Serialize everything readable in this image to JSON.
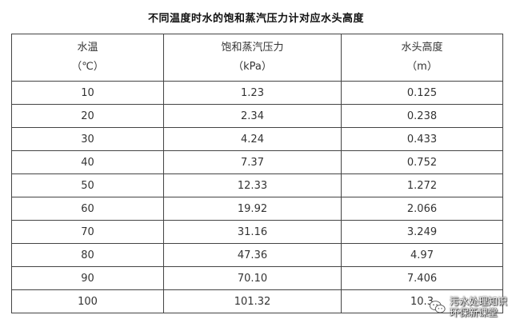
{
  "title": "不同温度时水的饱和蒸汽压力计对应水头高度",
  "table": {
    "headers": [
      {
        "line1": "水温",
        "line2": "（℃）"
      },
      {
        "line1": "饱和蒸汽压力",
        "line2": "（kPa）"
      },
      {
        "line1": "水头高度",
        "line2": "（m）"
      }
    ],
    "rows": [
      [
        "10",
        "1.23",
        "0.125"
      ],
      [
        "20",
        "2.34",
        "0.238"
      ],
      [
        "30",
        "4.24",
        "0.433"
      ],
      [
        "40",
        "7.37",
        "0.752"
      ],
      [
        "50",
        "12.33",
        "1.272"
      ],
      [
        "60",
        "19.92",
        "2.066"
      ],
      [
        "70",
        "31.16",
        "3.249"
      ],
      [
        "80",
        "47.36",
        "4.97"
      ],
      [
        "90",
        "70.10",
        "7.406"
      ],
      [
        "100",
        "101.32",
        "10.3"
      ]
    ]
  },
  "watermark": {
    "line1": "污水处理知识",
    "line2": "环保新课堂",
    "icon": "wechat-icon"
  }
}
